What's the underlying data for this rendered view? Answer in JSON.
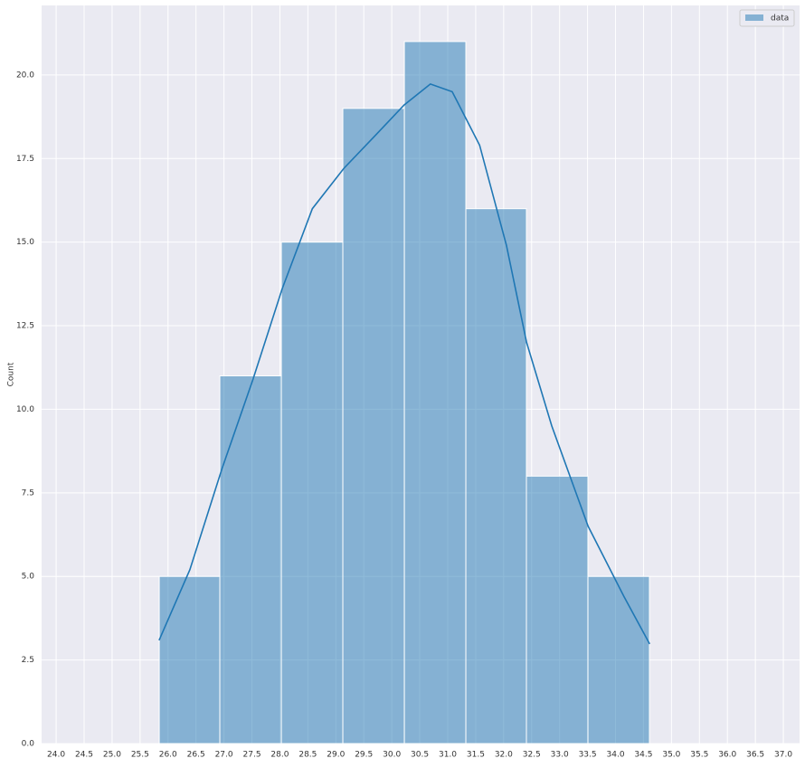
{
  "chart_data": {
    "type": "histogram",
    "ylabel": "Count",
    "bins": [
      25.843,
      26.926,
      28.026,
      29.125,
      30.225,
      31.324,
      32.407,
      33.507,
      34.606
    ],
    "values": [
      5,
      11,
      15,
      19,
      21,
      16,
      8,
      5
    ],
    "name": "data",
    "color": "#1f77b4",
    "kde": {
      "x": [
        25.84,
        26.39,
        26.96,
        27.52,
        28.04,
        28.58,
        29.14,
        29.71,
        30.22,
        30.69,
        31.08,
        31.57,
        32.05,
        32.41,
        32.86,
        33.51,
        34.15,
        34.61
      ],
      "values": [
        3.09,
        5.2,
        8.2,
        10.9,
        13.6,
        16.0,
        17.2,
        18.2,
        19.1,
        19.73,
        19.5,
        17.9,
        14.9,
        12.0,
        9.5,
        6.5,
        4.4,
        2.98
      ]
    },
    "xlim": [
      23.74,
      37.29
    ],
    "ylim": [
      0,
      22.08
    ],
    "xticks": [
      {
        "value": 24,
        "label": "24.0"
      },
      24.5,
      {
        "value": 25,
        "label": "25.0"
      },
      25.5,
      {
        "value": 26,
        "label": "26.0"
      },
      26.5,
      {
        "value": 27,
        "label": "27.0"
      },
      27.5,
      {
        "value": 28,
        "label": "28.0"
      },
      28.5,
      {
        "value": 29,
        "label": "29.0"
      },
      29.5,
      {
        "value": 30,
        "label": "30.0"
      },
      30.5,
      {
        "value": 31,
        "label": "31.0"
      },
      31.5,
      {
        "value": 32,
        "label": "32.0"
      },
      32.5,
      {
        "value": 33,
        "label": "33.0"
      },
      33.5,
      {
        "value": 34,
        "label": "34.0"
      },
      34.5,
      {
        "value": 35,
        "label": "35.0"
      },
      35.5,
      {
        "value": 36,
        "label": "36.0"
      },
      36.5,
      {
        "value": 37,
        "label": "37.0"
      }
    ],
    "yticks": [
      {
        "value": 0,
        "label": "0.0"
      },
      2.5,
      {
        "value": 5,
        "label": "5.0"
      },
      7.5,
      {
        "value": 10,
        "label": "10.0"
      },
      12.5,
      {
        "value": 15,
        "label": "15.0"
      },
      17.5,
      {
        "value": 20,
        "label": "20.0"
      }
    ],
    "grid": true,
    "legend": "upper right"
  }
}
